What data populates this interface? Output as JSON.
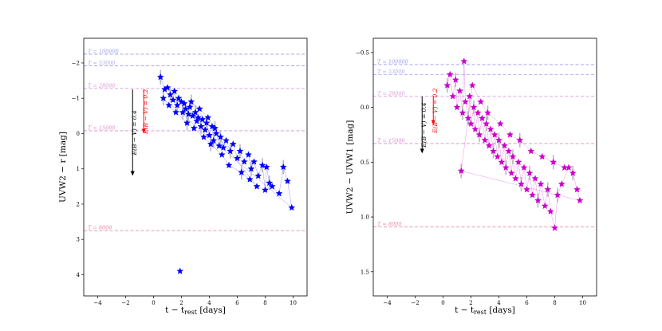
{
  "chart_data": [
    {
      "type": "scatter",
      "id": "left",
      "xlabel": "t − t_rest [days]",
      "xlabel_main": "t − t",
      "xlabel_sub": "rest",
      "xlabel_tail": " [days]",
      "ylabel": "UVW2 − r [mag]",
      "xlim": [
        -5,
        11
      ],
      "ylim": [
        4.6,
        -2.7
      ],
      "y_inverted": true,
      "xticks": [
        -4,
        -2,
        0,
        2,
        4,
        6,
        8,
        10
      ],
      "yticks": [
        -2,
        -1,
        0,
        1,
        2,
        3,
        4
      ],
      "marker": "star",
      "color": "#0000ff",
      "ref_lines": [
        {
          "label": "T = 100000",
          "y": -2.25,
          "color": "#9999ee"
        },
        {
          "label": "T = 53000",
          "y": -1.92,
          "color": "#aaaaee"
        },
        {
          "label": "T = 28000",
          "y": -1.28,
          "color": "#d99ad9"
        },
        {
          "label": "T = 15000",
          "y": -0.08,
          "color": "#dd88cc"
        },
        {
          "label": "T = 8000",
          "y": 2.75,
          "color": "#ee88aa"
        }
      ],
      "arrows": [
        {
          "label": "E(B − V) = 0.4",
          "x": -1.5,
          "y_start": -1.25,
          "y_end": 1.2,
          "color": "#000000"
        },
        {
          "label": "E(B − V) = 0.2",
          "x": -0.7,
          "y_start": -1.25,
          "y_end": 0.0,
          "color": "#ff0000"
        }
      ],
      "points": [
        [
          0.5,
          -1.6
        ],
        [
          0.8,
          -1.25
        ],
        [
          1.0,
          -1.3
        ],
        [
          1.2,
          -1.1
        ],
        [
          1.4,
          -0.95
        ],
        [
          1.5,
          -1.2
        ],
        [
          1.7,
          -0.8
        ],
        [
          1.8,
          -1.0
        ],
        [
          2.0,
          -0.9
        ],
        [
          2.1,
          -0.6
        ],
        [
          2.2,
          -0.85
        ],
        [
          2.3,
          -0.7
        ],
        [
          2.5,
          -0.55
        ],
        [
          2.6,
          -0.75
        ],
        [
          2.8,
          -0.5
        ],
        [
          3.0,
          -0.6
        ],
        [
          3.1,
          -0.35
        ],
        [
          3.2,
          -0.45
        ],
        [
          3.4,
          -0.2
        ],
        [
          3.5,
          -0.4
        ],
        [
          3.7,
          -0.1
        ],
        [
          3.8,
          -0.3
        ],
        [
          4.0,
          0.05
        ],
        [
          4.2,
          -0.2
        ],
        [
          4.3,
          0.2
        ],
        [
          4.5,
          0.0
        ],
        [
          4.7,
          0.35
        ],
        [
          4.8,
          0.1
        ],
        [
          5.0,
          0.4
        ],
        [
          5.2,
          0.2
        ],
        [
          5.5,
          0.5
        ],
        [
          5.7,
          0.3
        ],
        [
          6.0,
          0.7
        ],
        [
          6.2,
          0.5
        ],
        [
          6.5,
          0.8
        ],
        [
          6.8,
          0.6
        ],
        [
          7.0,
          1.0
        ],
        [
          7.2,
          0.8
        ],
        [
          7.5,
          1.2
        ],
        [
          7.8,
          0.9
        ],
        [
          8.0,
          1.6
        ],
        [
          8.1,
          0.95
        ],
        [
          8.3,
          1.4
        ],
        [
          8.5,
          1.5
        ],
        [
          9.0,
          1.7
        ],
        [
          9.3,
          0.95
        ],
        [
          9.6,
          1.35
        ],
        [
          9.9,
          2.1
        ],
        [
          0.7,
          -1.0
        ],
        [
          1.1,
          -0.8
        ],
        [
          1.6,
          -0.6
        ],
        [
          2.4,
          -0.3
        ],
        [
          2.9,
          -0.15
        ],
        [
          3.6,
          0.1
        ],
        [
          4.1,
          0.3
        ],
        [
          4.9,
          0.6
        ],
        [
          5.4,
          0.9
        ],
        [
          6.3,
          1.1
        ],
        [
          6.9,
          1.3
        ],
        [
          7.4,
          1.5
        ],
        [
          2.7,
          -0.9
        ],
        [
          3.3,
          -0.7
        ],
        [
          3.9,
          -0.45
        ],
        [
          4.4,
          -0.15
        ],
        [
          1.9,
          3.9
        ]
      ]
    },
    {
      "type": "scatter",
      "id": "right",
      "xlabel": "t − t_rest [days]",
      "xlabel_main": "t − t",
      "xlabel_sub": "rest",
      "xlabel_tail": " [days]",
      "ylabel": "UVW2 − UVW1 [mag]",
      "xlim": [
        -5,
        11
      ],
      "ylim": [
        1.72,
        -0.63
      ],
      "y_inverted": true,
      "xticks": [
        -4,
        -2,
        0,
        2,
        4,
        6,
        8,
        10
      ],
      "yticks": [
        -0.5,
        0.0,
        0.5,
        1.0,
        1.5
      ],
      "marker": "star",
      "color": "#cc00cc",
      "ref_lines": [
        {
          "label": "T = 100000",
          "y": -0.39,
          "color": "#9999ee"
        },
        {
          "label": "T = 53000",
          "y": -0.3,
          "color": "#aaaaee"
        },
        {
          "label": "T = 28000",
          "y": -0.1,
          "color": "#d99ad9"
        },
        {
          "label": "T = 15000",
          "y": 0.33,
          "color": "#dd88cc"
        },
        {
          "label": "T = 8000",
          "y": 1.09,
          "color": "#ee88aa"
        }
      ],
      "arrows": [
        {
          "label": "E(B − V) = 0.4",
          "x": -1.5,
          "y_start": -0.1,
          "y_end": 0.42,
          "color": "#000000"
        },
        {
          "label": "E(B − V) = 0.2",
          "x": -0.7,
          "y_start": -0.1,
          "y_end": 0.16,
          "color": "#ff0000"
        }
      ],
      "points": [
        [
          0.3,
          -0.2
        ],
        [
          0.5,
          -0.3
        ],
        [
          0.7,
          -0.1
        ],
        [
          0.9,
          -0.25
        ],
        [
          1.0,
          0.0
        ],
        [
          1.2,
          -0.15
        ],
        [
          1.4,
          0.05
        ],
        [
          1.5,
          -0.42
        ],
        [
          1.6,
          -0.05
        ],
        [
          1.8,
          0.1
        ],
        [
          1.9,
          -0.1
        ],
        [
          2.0,
          0.15
        ],
        [
          2.2,
          0.0
        ],
        [
          2.3,
          0.2
        ],
        [
          2.5,
          0.05
        ],
        [
          2.6,
          0.25
        ],
        [
          2.8,
          0.1
        ],
        [
          3.0,
          0.3
        ],
        [
          3.1,
          0.15
        ],
        [
          3.3,
          0.35
        ],
        [
          3.4,
          0.2
        ],
        [
          3.6,
          0.4
        ],
        [
          3.7,
          0.25
        ],
        [
          3.9,
          0.45
        ],
        [
          4.0,
          0.3
        ],
        [
          4.2,
          0.5
        ],
        [
          4.4,
          0.35
        ],
        [
          4.5,
          0.55
        ],
        [
          4.7,
          0.4
        ],
        [
          4.9,
          0.6
        ],
        [
          5.0,
          0.45
        ],
        [
          5.2,
          0.65
        ],
        [
          5.4,
          0.5
        ],
        [
          5.6,
          0.7
        ],
        [
          5.8,
          0.55
        ],
        [
          6.0,
          0.75
        ],
        [
          6.2,
          0.6
        ],
        [
          6.4,
          0.8
        ],
        [
          6.6,
          0.65
        ],
        [
          6.8,
          0.85
        ],
        [
          7.0,
          0.7
        ],
        [
          7.3,
          0.9
        ],
        [
          7.5,
          0.75
        ],
        [
          7.7,
          0.95
        ],
        [
          8.0,
          1.1
        ],
        [
          8.2,
          0.8
        ],
        [
          8.5,
          0.7
        ],
        [
          9.0,
          0.55
        ],
        [
          9.3,
          0.6
        ],
        [
          9.6,
          0.75
        ],
        [
          9.8,
          0.85
        ],
        [
          1.3,
          0.58
        ],
        [
          2.1,
          -0.2
        ],
        [
          2.7,
          -0.05
        ],
        [
          3.2,
          0.05
        ],
        [
          4.1,
          0.15
        ],
        [
          4.8,
          0.25
        ],
        [
          5.5,
          0.3
        ],
        [
          6.3,
          0.4
        ],
        [
          7.1,
          0.45
        ],
        [
          7.9,
          0.5
        ],
        [
          8.7,
          0.55
        ]
      ]
    }
  ]
}
